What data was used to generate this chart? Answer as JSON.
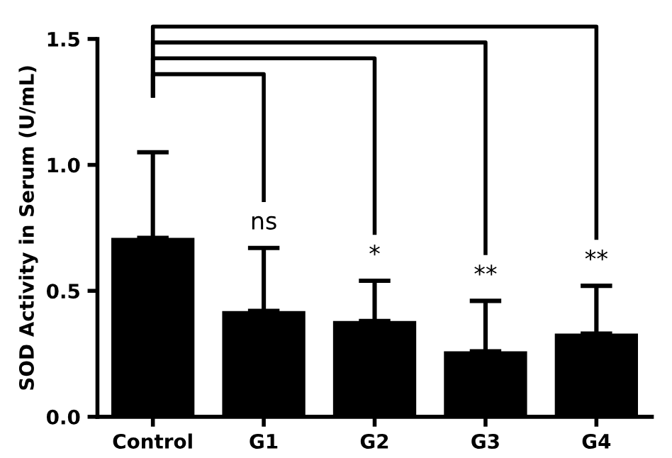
{
  "chart_data": {
    "type": "bar",
    "ylabel": "SOD Activity in Serum (U/mL)",
    "categories": [
      "Control",
      "G1",
      "G2",
      "G3",
      "G4"
    ],
    "values": [
      0.71,
      0.42,
      0.38,
      0.26,
      0.33
    ],
    "errors": [
      [
        0.71,
        1.05
      ],
      [
        0.42,
        0.67
      ],
      [
        0.38,
        0.54
      ],
      [
        0.26,
        0.46
      ],
      [
        0.33,
        0.52
      ]
    ],
    "color": "#000000",
    "ylim": [
      0,
      1.5
    ],
    "yticks": [
      {
        "value": 0,
        "label": "0.0"
      },
      0.5,
      {
        "value": 1,
        "label": "1.0"
      },
      1.5
    ],
    "grid": false,
    "annotations": [
      "ns",
      "*",
      "**",
      "**"
    ]
  }
}
